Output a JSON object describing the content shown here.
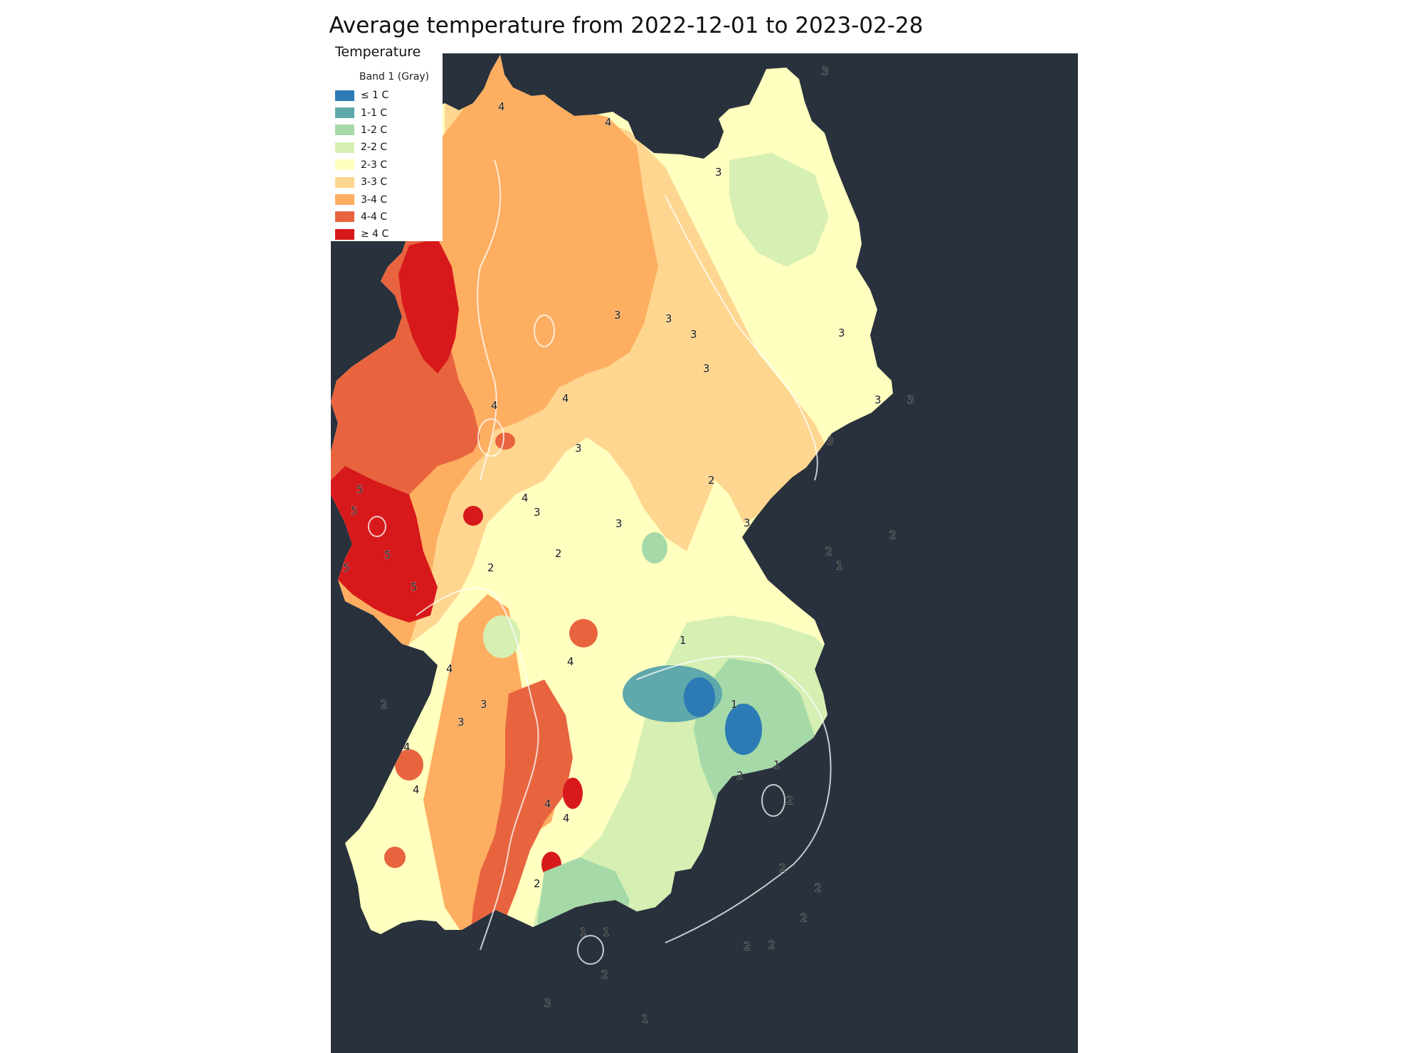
{
  "title": "Average temperature from 2022-12-01 to 2023-02-28",
  "legend": {
    "title": "Temperature",
    "subtitle": "Band 1 (Gray)",
    "items": [
      {
        "label": "≤ 1 C",
        "color": "#2c7bb6"
      },
      {
        "label": "1-1 C",
        "color": "#5fa8ab"
      },
      {
        "label": "1-2 C",
        "color": "#a5d9a8"
      },
      {
        "label": "2-2 C",
        "color": "#d6efb3"
      },
      {
        "label": "2-3 C",
        "color": "#ffffbf"
      },
      {
        "label": "3-3 C",
        "color": "#fed690"
      },
      {
        "label": "3-4 C",
        "color": "#fdae61"
      },
      {
        "label": "4-4 C",
        "color": "#e8643f"
      },
      {
        "label": "≥ 4 C",
        "color": "#d7191c"
      }
    ]
  },
  "colors": {
    "background": "#29313d",
    "contour_line": "#ffffff"
  },
  "contour_labels": [
    "3",
    "4",
    "4",
    "3",
    "3",
    "3",
    "3",
    "3",
    "3",
    "3",
    "3",
    "3",
    "4",
    "4",
    "3",
    "2",
    "4",
    "5",
    "5",
    "5",
    "5",
    "5",
    "3",
    "2",
    "3",
    "2",
    "3",
    "2",
    "1",
    "1",
    "1",
    "4",
    "4",
    "2",
    "3",
    "3",
    "4",
    "4",
    "4",
    "4",
    "2",
    "2",
    "1",
    "1",
    "1",
    "2",
    "2",
    "2",
    "2",
    "2",
    "2",
    "2",
    "3",
    "1",
    "2"
  ]
}
